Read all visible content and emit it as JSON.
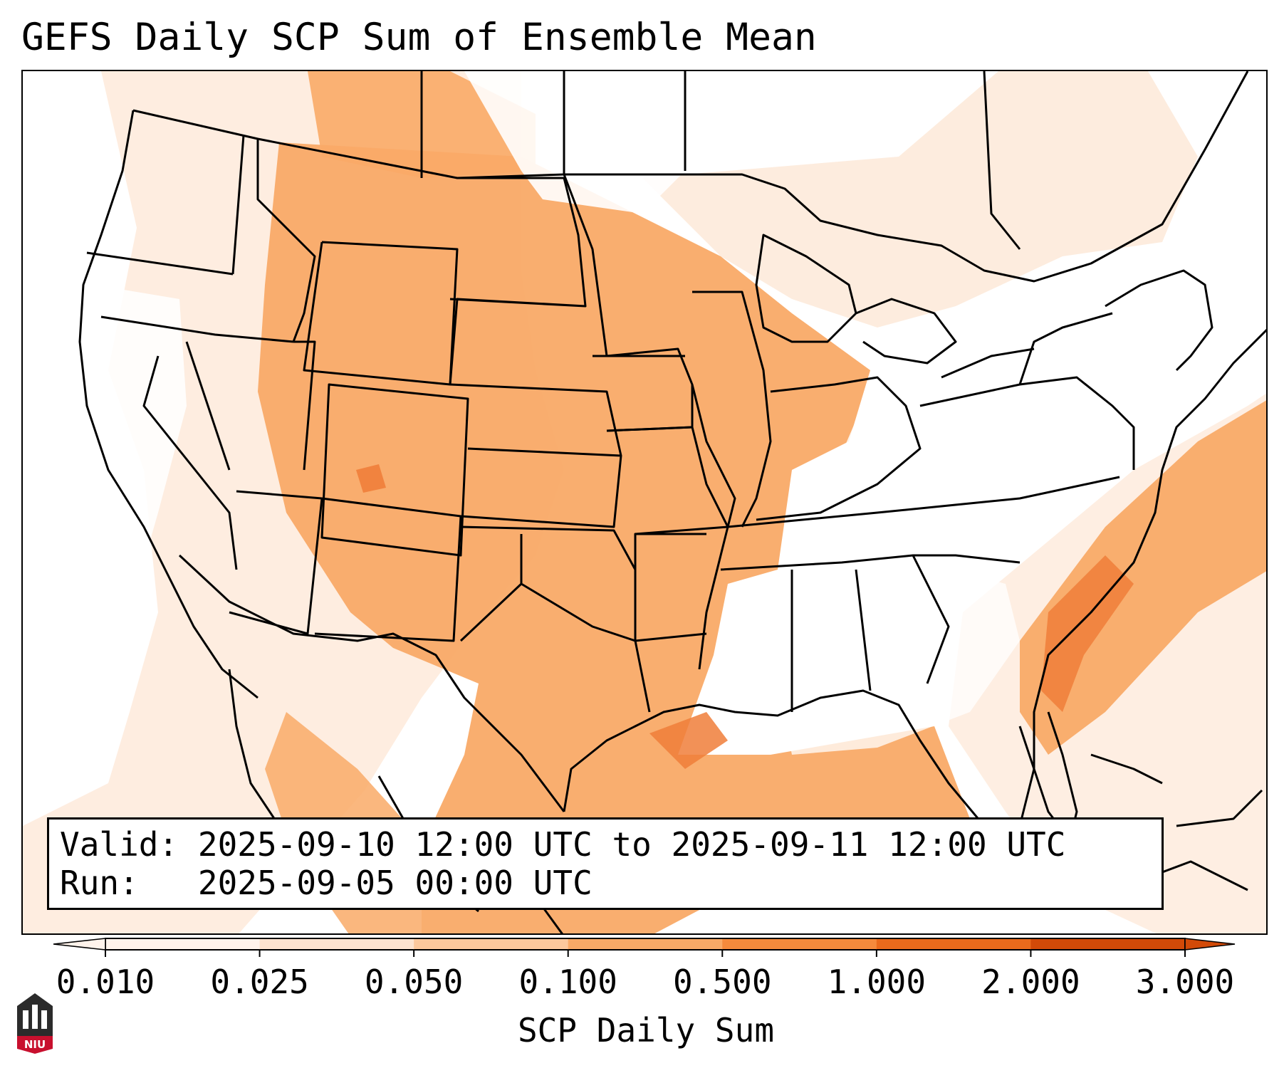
{
  "title": "GEFS Daily SCP Sum of Ensemble Mean",
  "info": {
    "valid_label": "Valid:",
    "valid_value": "2025-09-10 12:00 UTC to 2025-09-11 12:00 UTC",
    "run_label": "Run:",
    "run_value": "2025-09-05 00:00 UTC"
  },
  "colorbar": {
    "title": "SCP Daily Sum",
    "ticks": [
      "0.010",
      "0.025",
      "0.050",
      "0.100",
      "0.500",
      "1.000",
      "2.000",
      "3.000"
    ],
    "colors": [
      "#fff3eb",
      "#fde3cf",
      "#fcc89c",
      "#f9aa67",
      "#f58a3c",
      "#ea6a1c",
      "#d24a08"
    ],
    "extend": "both"
  },
  "logo": {
    "text": "NIU",
    "color": "#c8102e"
  },
  "colors": {
    "light": "#fde7d6",
    "medium": "#f9aa67",
    "dark": "#f07e3a",
    "border": "#000000"
  }
}
